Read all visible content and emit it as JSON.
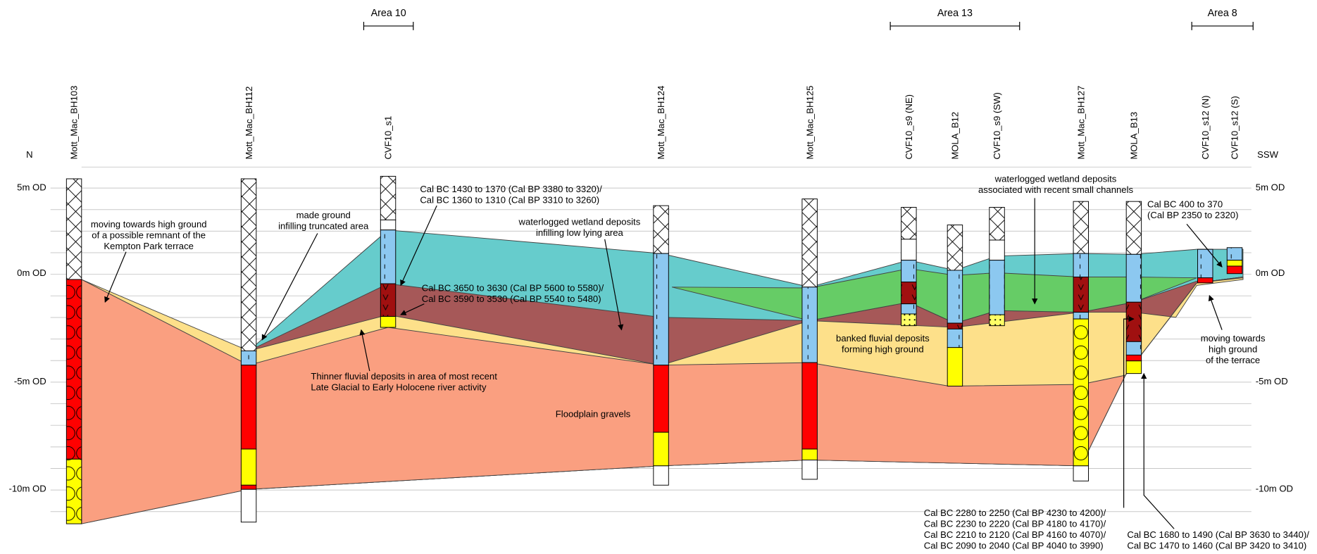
{
  "areas": [
    "Area 10",
    "Area 13",
    "Area 8"
  ],
  "directions": {
    "left": "N",
    "right": "SSW"
  },
  "levels": [
    "5m OD",
    "0m OD",
    "-5m OD",
    "-10m OD"
  ],
  "boreholes": [
    "Mott_Mac_BH103",
    "Mott_Mac_BH112",
    "CVF10_s1",
    "Mott_Mac_BH124",
    "Mott_Mac_BH125",
    "CVF10_s9 (NE)",
    "MOLA_B12",
    "CVF10_s9 (SW)",
    "Mott_Mac_BH127",
    "MOLA_B13",
    "CVF10_s12 (N)",
    "CVF10_s12 (S)"
  ],
  "annotations": [
    [
      "moving towards high ground",
      "of a possible remnant of the",
      "Kempton Park terrace"
    ],
    [
      "made ground",
      "infilling truncated area"
    ],
    [
      "Cal BC 1430 to 1370 (Cal BP 3380 to 3320)/",
      "Cal BC 1360 to 1310 (Cal BP 3310 to 3260)"
    ],
    [
      "waterlogged wetland deposits",
      "infilling low lying area"
    ],
    [
      "Cal BC 3650 to 3630 (Cal BP 5600 to 5580)/",
      "Cal BC 3590 to 3530 (Cal BP 5540 to 5480)"
    ],
    [
      "Thinner fluvial deposits in area of most recent",
      "Late Glacial to Early Holocene river activity"
    ],
    [
      "Floodplain gravels"
    ],
    [
      "banked fluvial deposits",
      "forming high ground"
    ],
    [
      "waterlogged wetland deposits",
      "associated with recent small channels"
    ],
    [
      "Cal BC 400 to 370",
      "(Cal BP 2350 to 2320)"
    ],
    [
      "moving towards",
      "high ground",
      "of the terrace"
    ],
    [
      "Cal BC 2280 to 2250 (Cal BP 4230 to 4200)/",
      "Cal BC 2230 to 2220 (Cal BP 4180 to 4170)/",
      "Cal BC 2210 to 2120 (Cal BP 4160 to 4070)/",
      "Cal BC 2090 to 2040 (Cal BP 4040 to 3990)"
    ],
    [
      "Cal BC 1680 to 1490 (Cal BP 3630 to 3440)/",
      "Cal BC 1470 to 1460 (Cal BP 3420 to 3410)"
    ]
  ]
}
